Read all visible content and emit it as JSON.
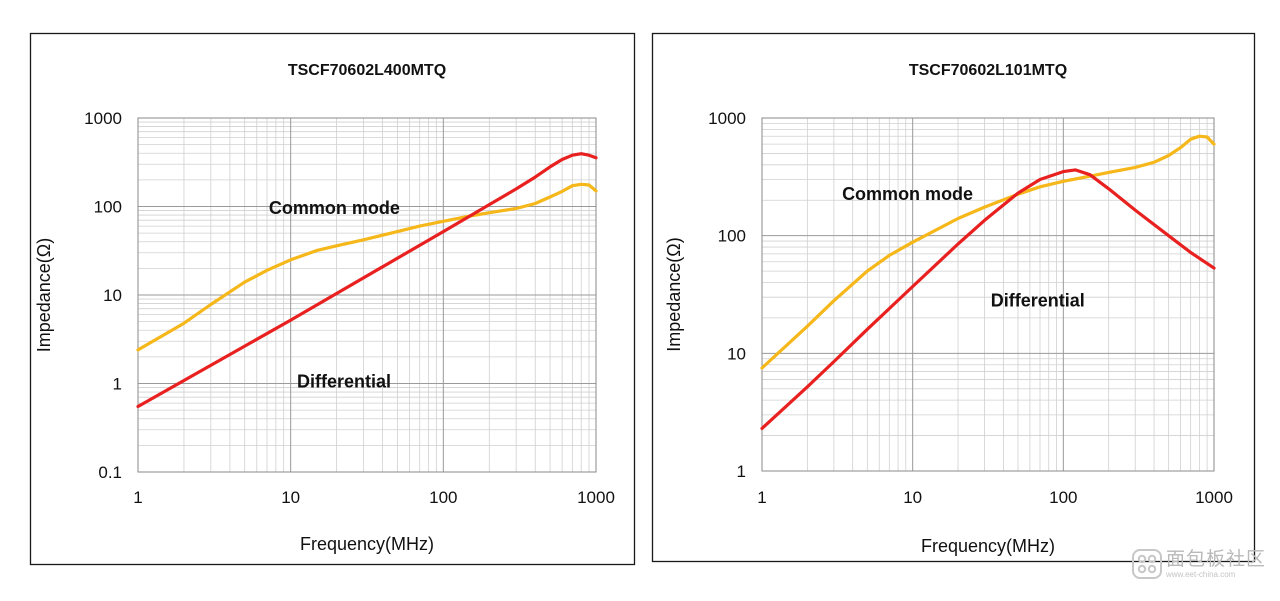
{
  "chart_data": [
    {
      "type": "line",
      "title": "TSCF70602L400MTQ",
      "xlabel": "Frequency(MHz)",
      "ylabel": "Impedance(Ω)",
      "xscale": "log",
      "yscale": "log",
      "xlim": [
        1,
        1000
      ],
      "ylim": [
        0.1,
        1000
      ],
      "xticks": [
        1,
        10,
        100,
        1000
      ],
      "xtick_labels": [
        "1",
        "10",
        "100",
        "1000"
      ],
      "yticks": [
        0.1,
        1,
        10,
        100,
        1000
      ],
      "ytick_labels": [
        "0.1",
        "1",
        "10",
        "100",
        "1000"
      ],
      "grid": true,
      "legend": "none",
      "annotations": [
        {
          "text": "Common mode",
          "x": 7.2,
          "y": 82
        },
        {
          "text": "Differential",
          "x": 11,
          "y": 0.9
        }
      ],
      "series": [
        {
          "name": "Common mode",
          "color": "#f5b719",
          "x": [
            1,
            2,
            3,
            5,
            7,
            10,
            15,
            20,
            30,
            50,
            70,
            100,
            150,
            200,
            300,
            400,
            500,
            600,
            700,
            800,
            900,
            1000
          ],
          "y": [
            2.4,
            4.8,
            7.8,
            14,
            19,
            25,
            32,
            36,
            42,
            52,
            60,
            68,
            78,
            85,
            95,
            108,
            128,
            148,
            172,
            178,
            175,
            150
          ]
        },
        {
          "name": "Differential",
          "color": "#e8201f",
          "x": [
            1,
            10,
            100,
            200,
            300,
            400,
            500,
            600,
            700,
            800,
            900,
            1000
          ],
          "y": [
            0.55,
            5.2,
            52,
            105,
            158,
            215,
            280,
            340,
            380,
            395,
            380,
            355
          ]
        }
      ]
    },
    {
      "type": "line",
      "title": "TSCF70602L101MTQ",
      "xlabel": "Frequency(MHz)",
      "ylabel": "Impedance(Ω)",
      "xscale": "log",
      "yscale": "log",
      "xlim": [
        1,
        1000
      ],
      "ylim": [
        1,
        1000
      ],
      "xticks": [
        1,
        10,
        100,
        1000
      ],
      "xtick_labels": [
        "1",
        "10",
        "100",
        "1000"
      ],
      "yticks": [
        1,
        10,
        100,
        1000
      ],
      "ytick_labels": [
        "1",
        "10",
        "100",
        "1000"
      ],
      "grid": true,
      "legend": "none",
      "annotations": [
        {
          "text": "Common mode",
          "x": 3.4,
          "y": 200
        },
        {
          "text": "Differential",
          "x": 33,
          "y": 25
        }
      ],
      "series": [
        {
          "name": "Common mode",
          "color": "#f5b719",
          "x": [
            1,
            2,
            3,
            5,
            7,
            10,
            20,
            30,
            50,
            70,
            100,
            150,
            200,
            300,
            400,
            500,
            600,
            700,
            800,
            900,
            1000
          ],
          "y": [
            7.5,
            17,
            28,
            50,
            68,
            88,
            140,
            175,
            225,
            260,
            290,
            320,
            345,
            380,
            420,
            480,
            560,
            660,
            700,
            690,
            600
          ]
        },
        {
          "name": "Differential",
          "color": "#e8201f",
          "x": [
            1,
            2,
            3,
            5,
            10,
            20,
            30,
            50,
            70,
            100,
            120,
            150,
            200,
            300,
            500,
            700,
            1000
          ],
          "y": [
            2.3,
            5.2,
            8.5,
            16,
            37,
            85,
            135,
            230,
            300,
            350,
            362,
            330,
            250,
            165,
            100,
            72,
            53
          ]
        }
      ]
    }
  ],
  "watermark": {
    "text": "面包板社区",
    "subtext": "www.eet-china.com"
  }
}
